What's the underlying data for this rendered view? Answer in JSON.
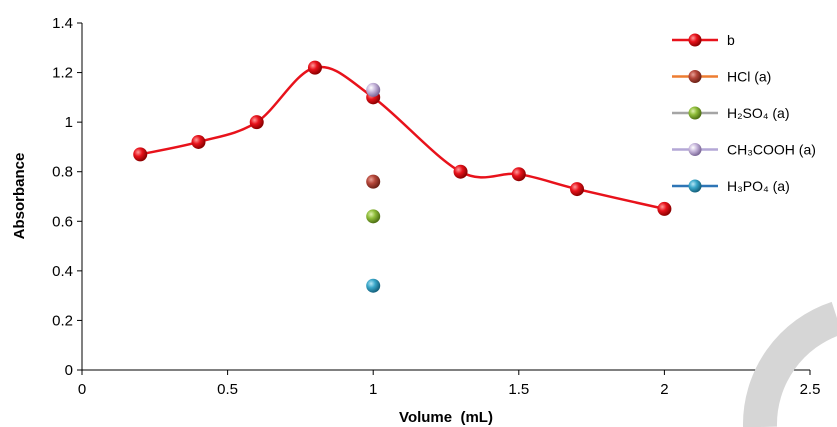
{
  "chart_data": {
    "type": "line",
    "xlabel": "Volume  (mL)",
    "ylabel": "Absorbance",
    "xlim": [
      0,
      2.5
    ],
    "ylim": [
      0,
      1.4
    ],
    "xticks": [
      "0",
      "0.5",
      "1",
      "1.5",
      "2",
      "2.5"
    ],
    "yticks": [
      "0",
      "0.2",
      "0.4",
      "0.6",
      "0.8",
      "1",
      "1.2",
      "1.4"
    ],
    "grid": false,
    "legend_position": "right",
    "series": [
      {
        "key": "b",
        "name": "b",
        "color": "#e8121b",
        "style": "line-marker",
        "x": [
          0.2,
          0.4,
          0.6,
          0.8,
          1.0,
          1.3,
          1.5,
          1.7,
          2.0
        ],
        "y": [
          0.87,
          0.92,
          1.0,
          1.22,
          1.1,
          0.8,
          0.79,
          0.73,
          0.65
        ]
      },
      {
        "key": "hcl",
        "name": "HCl (a)",
        "color": "#b5473a",
        "line_color": "#ed7d31",
        "style": "marker",
        "x": [
          1.0
        ],
        "y": [
          0.76
        ]
      },
      {
        "key": "h2so4",
        "name": "H₂SO₄ (a)",
        "color": "#8fbd3a",
        "line_color": "#a5a5a5",
        "style": "marker",
        "x": [
          1.0
        ],
        "y": [
          0.62
        ]
      },
      {
        "key": "ch3cooh",
        "name": "CH₃COOH (a)",
        "color": "#c9b9dd",
        "line_color": "#b4a7d6",
        "style": "marker",
        "x": [
          1.0
        ],
        "y": [
          1.13
        ]
      },
      {
        "key": "h3po4",
        "name": "H₃PO₄ (a)",
        "color": "#3aa7c9",
        "line_color": "#2e75b6",
        "style": "marker",
        "x": [
          1.0
        ],
        "y": [
          0.34
        ]
      }
    ]
  }
}
